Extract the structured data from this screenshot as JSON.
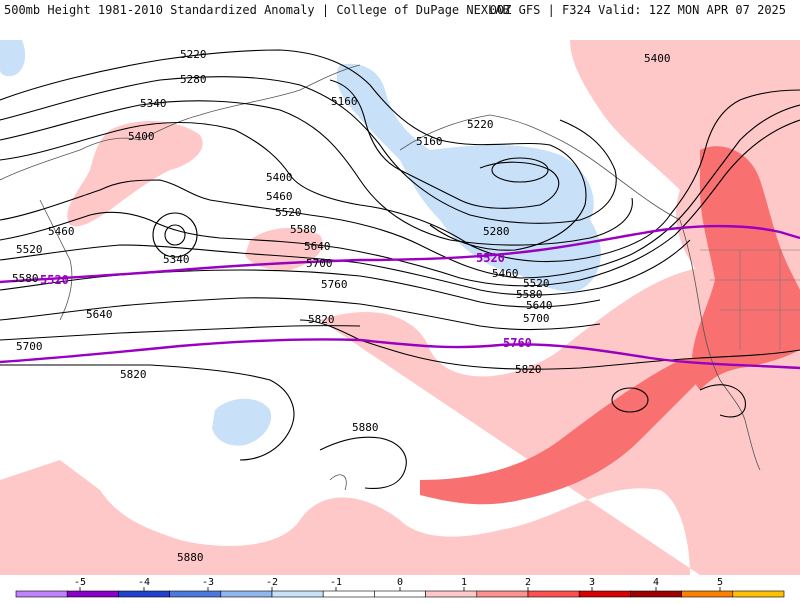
{
  "header": {
    "title_left": "500mb Height 1981-2010 Standardized Anomaly | College of DuPage NEXLAB",
    "title_right": "00Z GFS | F324 Valid: 12Z MON APR 07 2025"
  },
  "contour_labels": {
    "c5220a": "5220",
    "c5280a": "5280",
    "c5340a": "5340",
    "c5400a": "5400",
    "c5460a": "5460",
    "c5520a": "5520",
    "c5580a": "5580",
    "c5640a": "5640",
    "c5700a": "5700",
    "c5820a": "5820",
    "c5880a": "5880",
    "c5880b": "5880",
    "c5160a": "5160",
    "c5160b": "5160",
    "c5220b": "5220",
    "c5280b": "5280",
    "c5460b": "5460",
    "c5520b": "5520",
    "c5580b": "5580",
    "c5640b": "5640",
    "c5700b": "5700",
    "c5400b": "5400",
    "c5460c": "5460",
    "c5520c": "5520",
    "c5580c": "5580",
    "c5640c": "5640",
    "c5700c": "5700",
    "c5760a": "5760",
    "c5820b": "5820",
    "c5820c": "5820",
    "c5400c": "5400",
    "c5340b": "5340",
    "c5520d": "5520"
  },
  "highlight_labels": {
    "h5520": "5520",
    "h5520b": "5520",
    "h5760": "5760"
  },
  "colorbar": {
    "ticks": [
      "-5",
      "-4",
      "-3",
      "-2",
      "-1",
      "0",
      "1",
      "2",
      "3",
      "4",
      "5"
    ],
    "colors": [
      "#c080ff",
      "#8a00c8",
      "#2040d0",
      "#4a7ae0",
      "#8eb6f0",
      "#c8e0f8",
      "#ffffff",
      "#ffffff",
      "#ffc8c8",
      "#ff9090",
      "#ff5050",
      "#d80000",
      "#a00000",
      "#ff8000",
      "#ffc000"
    ]
  },
  "colors": {
    "neg_light": "#c8e0f8",
    "pos_light": "#ffc8c8",
    "pos_mid": "#f87070",
    "highlight": "#9a00c0"
  }
}
